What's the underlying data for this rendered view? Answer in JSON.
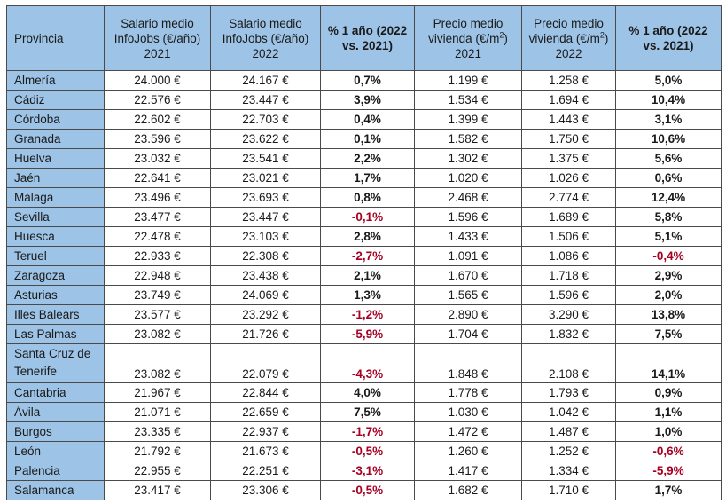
{
  "headers": {
    "provincia": "Provincia",
    "salario_2021": "Salario medio InfoJobs (€/año) 2021",
    "salario_2022": "Salario medio InfoJobs (€/año) 2022",
    "pct_salario": "% 1 año (2022 vs. 2021)",
    "vivienda_2021_pre": "Precio medio vivienda (€/m",
    "vivienda_2021_post": ") 2021",
    "vivienda_2022_pre": "Precio medio vivienda (€/m",
    "vivienda_2022_post": ") 2022",
    "sup": "2",
    "pct_vivienda": "% 1 año (2022 vs. 2021)"
  },
  "rows": [
    {
      "provincia": "Almería",
      "salario_2021": "24.000 €",
      "salario_2022": "24.167 €",
      "pct_salario": "0,7%",
      "vivienda_2021": "1.199 €",
      "vivienda_2022": "1.258 €",
      "pct_vivienda": "5,0%"
    },
    {
      "provincia": "Cádiz",
      "salario_2021": "22.576 €",
      "salario_2022": "23.447 €",
      "pct_salario": "3,9%",
      "vivienda_2021": "1.534 €",
      "vivienda_2022": "1.694 €",
      "pct_vivienda": "10,4%"
    },
    {
      "provincia": "Córdoba",
      "salario_2021": "22.602 €",
      "salario_2022": "22.703 €",
      "pct_salario": "0,4%",
      "vivienda_2021": "1.399 €",
      "vivienda_2022": "1.443 €",
      "pct_vivienda": "3,1%"
    },
    {
      "provincia": "Granada",
      "salario_2021": "23.596 €",
      "salario_2022": "23.622 €",
      "pct_salario": "0,1%",
      "vivienda_2021": "1.582 €",
      "vivienda_2022": "1.750 €",
      "pct_vivienda": "10,6%"
    },
    {
      "provincia": "Huelva",
      "salario_2021": "23.032 €",
      "salario_2022": "23.541 €",
      "pct_salario": "2,2%",
      "vivienda_2021": "1.302 €",
      "vivienda_2022": "1.375 €",
      "pct_vivienda": "5,6%"
    },
    {
      "provincia": "Jaén",
      "salario_2021": "22.641 €",
      "salario_2022": "23.021 €",
      "pct_salario": "1,7%",
      "vivienda_2021": "1.020 €",
      "vivienda_2022": "1.026 €",
      "pct_vivienda": "0,6%"
    },
    {
      "provincia": "Málaga",
      "salario_2021": "23.496 €",
      "salario_2022": "23.693 €",
      "pct_salario": "0,8%",
      "vivienda_2021": "2.468 €",
      "vivienda_2022": "2.774 €",
      "pct_vivienda": "12,4%"
    },
    {
      "provincia": "Sevilla",
      "salario_2021": "23.477 €",
      "salario_2022": "23.447 €",
      "pct_salario": "-0,1%",
      "vivienda_2021": "1.596 €",
      "vivienda_2022": "1.689 €",
      "pct_vivienda": "5,8%"
    },
    {
      "provincia": "Huesca",
      "salario_2021": "22.478 €",
      "salario_2022": "23.103 €",
      "pct_salario": "2,8%",
      "vivienda_2021": "1.433 €",
      "vivienda_2022": "1.506 €",
      "pct_vivienda": "5,1%"
    },
    {
      "provincia": "Teruel",
      "salario_2021": "22.933 €",
      "salario_2022": "22.308 €",
      "pct_salario": "-2,7%",
      "vivienda_2021": "1.091 €",
      "vivienda_2022": "1.086 €",
      "pct_vivienda": "-0,4%"
    },
    {
      "provincia": "Zaragoza",
      "salario_2021": "22.948 €",
      "salario_2022": "23.438 €",
      "pct_salario": "2,1%",
      "vivienda_2021": "1.670 €",
      "vivienda_2022": "1.718 €",
      "pct_vivienda": "2,9%"
    },
    {
      "provincia": "Asturias",
      "salario_2021": "23.749 €",
      "salario_2022": "24.069 €",
      "pct_salario": "1,3%",
      "vivienda_2021": "1.565 €",
      "vivienda_2022": "1.596 €",
      "pct_vivienda": "2,0%"
    },
    {
      "provincia": "Illes Balears",
      "salario_2021": "23.577 €",
      "salario_2022": "23.292 €",
      "pct_salario": "-1,2%",
      "vivienda_2021": "2.890 €",
      "vivienda_2022": "3.290 €",
      "pct_vivienda": "13,8%"
    },
    {
      "provincia": "Las Palmas",
      "salario_2021": "23.082 €",
      "salario_2022": "21.726 €",
      "pct_salario": "-5,9%",
      "vivienda_2021": "1.704 €",
      "vivienda_2022": "1.832 €",
      "pct_vivienda": "7,5%"
    },
    {
      "provincia": "Santa Cruz de Tenerife",
      "salario_2021": "23.082 €",
      "salario_2022": "22.079 €",
      "pct_salario": "-4,3%",
      "vivienda_2021": "1.848 €",
      "vivienda_2022": "2.108 €",
      "pct_vivienda": "14,1%"
    },
    {
      "provincia": "Cantabria",
      "salario_2021": "21.967 €",
      "salario_2022": "22.844 €",
      "pct_salario": "4,0%",
      "vivienda_2021": "1.778 €",
      "vivienda_2022": "1.793 €",
      "pct_vivienda": "0,9%"
    },
    {
      "provincia": "Ávila",
      "salario_2021": "21.071 €",
      "salario_2022": "22.659 €",
      "pct_salario": "7,5%",
      "vivienda_2021": "1.030 €",
      "vivienda_2022": "1.042 €",
      "pct_vivienda": "1,1%"
    },
    {
      "provincia": "Burgos",
      "salario_2021": "23.335 €",
      "salario_2022": "22.937 €",
      "pct_salario": "-1,7%",
      "vivienda_2021": "1.472 €",
      "vivienda_2022": "1.487 €",
      "pct_vivienda": "1,0%"
    },
    {
      "provincia": "León",
      "salario_2021": "21.792 €",
      "salario_2022": "21.673 €",
      "pct_salario": "-0,5%",
      "vivienda_2021": "1.260 €",
      "vivienda_2022": "1.252 €",
      "pct_vivienda": "-0,6%"
    },
    {
      "provincia": "Palencia",
      "salario_2021": "22.955 €",
      "salario_2022": "22.251 €",
      "pct_salario": "-3,1%",
      "vivienda_2021": "1.417 €",
      "vivienda_2022": "1.334 €",
      "pct_vivienda": "-5,9%"
    },
    {
      "provincia": "Salamanca",
      "salario_2021": "23.417 €",
      "salario_2022": "23.306 €",
      "pct_salario": "-0,5%",
      "vivienda_2021": "1.682 €",
      "vivienda_2022": "1.710 €",
      "pct_vivienda": "1,7%"
    }
  ],
  "colors": {
    "header_bg": "#9dc3e6",
    "province_bg": "#9dc3e6",
    "negative": "#a50021",
    "border": "#4a4a4a"
  }
}
